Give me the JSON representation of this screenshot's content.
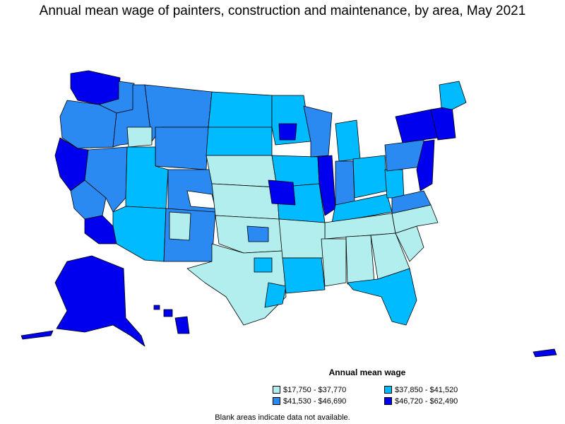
{
  "title": "Annual mean wage of painters, construction and maintenance, by area, May 2021",
  "legend": {
    "title": "Annual mean wage",
    "items": [
      {
        "label": "$17,750 - $37,770",
        "color": "#b2eeee"
      },
      {
        "label": "$37,850 - $41,520",
        "color": "#00bbff"
      },
      {
        "label": "$41,530 - $46,690",
        "color": "#2a8af2"
      },
      {
        "label": "$46,720 - $62,490",
        "color": "#0000ee"
      }
    ]
  },
  "footnote": "Blank areas indicate data not available.",
  "map": {
    "region": "United States (nonmetropolitan and metropolitan areas)",
    "border_color": "#000000",
    "no_data_color": "#ffffff"
  }
}
